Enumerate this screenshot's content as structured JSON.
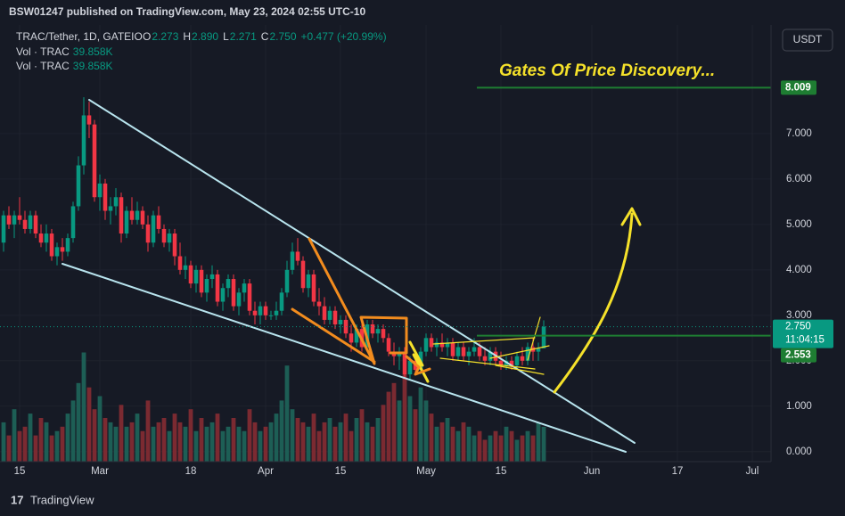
{
  "chart_data": {
    "type": "candlestick",
    "publisher": "BSW01247 published on TradingView.com, May 23, 2024 02:55 UTC-10",
    "symbol": "TRAC/Tether, 1D, GATEIO",
    "legend": [
      {
        "label": "O",
        "value": "2.273"
      },
      {
        "label": "H",
        "value": "2.890"
      },
      {
        "label": "L",
        "value": "2.271"
      },
      {
        "label": "C",
        "value": "2.750"
      }
    ],
    "change": "+0.477 (+20.99%)",
    "volume_legends": [
      {
        "label": "Vol · TRAC",
        "value": "39.858K"
      },
      {
        "label": "Vol · TRAC",
        "value": "39.858K"
      }
    ],
    "currency": "USDT",
    "annotation": "Gates Of Price Discovery...",
    "countdown": "11:04:15",
    "brand": "TradingView",
    "up_color": "#089981",
    "down_color": "#f23645",
    "volume_up_color": "#1d5e55",
    "volume_down_color": "#7b2a31",
    "xlim": [
      -3.667,
      140.5
    ],
    "ylim": [
      -0.22,
      9.39
    ],
    "vlim": [
      0,
      500
    ],
    "xticks": [
      {
        "value": 0,
        "label": "15"
      },
      {
        "value": 15,
        "label": "Mar"
      },
      {
        "value": 32,
        "label": "18"
      },
      {
        "value": 46,
        "label": "Apr"
      },
      {
        "value": 60,
        "label": "15"
      },
      {
        "value": 76,
        "label": "May"
      },
      {
        "value": 90,
        "label": "15"
      },
      {
        "value": 107,
        "label": "Jun"
      },
      {
        "value": 123,
        "label": "17"
      },
      {
        "value": 137,
        "label": "Jul"
      }
    ],
    "yticks": [
      {
        "value": 0,
        "label": "0.000"
      },
      {
        "value": 1,
        "label": "1.000"
      },
      {
        "value": 2,
        "label": "2.000"
      },
      {
        "value": 3,
        "label": "3.000"
      },
      {
        "value": 4,
        "label": "4.000"
      },
      {
        "value": 5,
        "label": "5.000"
      },
      {
        "value": 6,
        "label": "6.000"
      },
      {
        "value": 7,
        "label": "7.000"
      }
    ],
    "last_price": {
      "value": 2.75,
      "label": "2.750"
    },
    "hlines": [
      {
        "value": 8.009,
        "label": "8.009"
      },
      {
        "value": 2.553,
        "label": "2.553"
      }
    ],
    "hline_color": "#1e7d32",
    "x": [
      -3,
      -2,
      -1,
      0,
      1,
      2,
      3,
      4,
      5,
      6,
      7,
      8,
      9,
      10,
      11,
      12,
      13,
      14,
      15,
      16,
      17,
      18,
      19,
      20,
      21,
      22,
      23,
      24,
      25,
      26,
      27,
      28,
      29,
      30,
      31,
      32,
      33,
      34,
      35,
      36,
      37,
      38,
      39,
      40,
      41,
      42,
      43,
      44,
      45,
      46,
      47,
      48,
      49,
      50,
      51,
      52,
      53,
      54,
      55,
      56,
      57,
      58,
      59,
      60,
      61,
      62,
      63,
      64,
      65,
      66,
      67,
      68,
      69,
      70,
      71,
      72,
      73,
      74,
      75,
      76,
      77,
      78,
      79,
      80,
      81,
      82,
      83,
      84,
      85,
      86,
      87,
      88,
      89,
      90,
      91,
      92,
      93,
      94,
      95,
      96,
      97,
      98
    ],
    "ohlc": [
      [
        4.6,
        5.3,
        4.4,
        5.2
      ],
      [
        5.2,
        5.4,
        4.9,
        5.0
      ],
      [
        5.0,
        5.3,
        4.7,
        5.2
      ],
      [
        5.2,
        5.6,
        5.0,
        5.1
      ],
      [
        5.1,
        5.3,
        4.8,
        4.9
      ],
      [
        4.9,
        5.3,
        4.8,
        5.2
      ],
      [
        5.2,
        5.3,
        4.7,
        4.8
      ],
      [
        4.8,
        5.0,
        4.5,
        4.6
      ],
      [
        4.6,
        5.0,
        4.4,
        4.8
      ],
      [
        4.8,
        4.9,
        4.2,
        4.3
      ],
      [
        4.3,
        4.6,
        4.1,
        4.5
      ],
      [
        4.5,
        4.7,
        4.2,
        4.4
      ],
      [
        4.4,
        4.8,
        4.3,
        4.7
      ],
      [
        4.7,
        5.5,
        4.6,
        5.4
      ],
      [
        5.4,
        6.5,
        5.3,
        6.3
      ],
      [
        6.3,
        7.8,
        6.1,
        7.4
      ],
      [
        7.4,
        7.7,
        6.9,
        7.2
      ],
      [
        7.2,
        7.3,
        5.5,
        5.6
      ],
      [
        5.6,
        6.1,
        5.3,
        5.9
      ],
      [
        5.9,
        6.0,
        5.1,
        5.3
      ],
      [
        5.3,
        5.6,
        5.0,
        5.4
      ],
      [
        5.4,
        5.8,
        5.2,
        5.6
      ],
      [
        5.6,
        5.7,
        4.6,
        4.8
      ],
      [
        4.8,
        5.4,
        4.7,
        5.3
      ],
      [
        5.3,
        5.6,
        5.0,
        5.1
      ],
      [
        5.1,
        5.5,
        5.0,
        5.3
      ],
      [
        5.3,
        5.4,
        4.9,
        5.0
      ],
      [
        5.0,
        5.2,
        4.4,
        4.6
      ],
      [
        4.6,
        5.3,
        4.5,
        5.2
      ],
      [
        5.2,
        5.4,
        4.8,
        4.9
      ],
      [
        4.9,
        5.0,
        4.5,
        4.6
      ],
      [
        4.6,
        4.9,
        4.4,
        4.8
      ],
      [
        4.8,
        4.9,
        4.1,
        4.3
      ],
      [
        4.3,
        4.6,
        3.9,
        4.0
      ],
      [
        4.0,
        4.3,
        3.8,
        4.1
      ],
      [
        4.1,
        4.2,
        3.6,
        3.7
      ],
      [
        3.7,
        4.1,
        3.5,
        4.0
      ],
      [
        4.0,
        4.1,
        3.4,
        3.5
      ],
      [
        3.5,
        3.9,
        3.3,
        3.8
      ],
      [
        3.8,
        4.1,
        3.6,
        3.9
      ],
      [
        3.9,
        4.0,
        3.2,
        3.3
      ],
      [
        3.3,
        3.7,
        3.1,
        3.6
      ],
      [
        3.6,
        3.9,
        3.4,
        3.8
      ],
      [
        3.8,
        3.9,
        3.1,
        3.2
      ],
      [
        3.2,
        3.6,
        3.0,
        3.5
      ],
      [
        3.5,
        3.8,
        3.3,
        3.7
      ],
      [
        3.7,
        3.8,
        3.0,
        3.1
      ],
      [
        3.1,
        3.3,
        2.8,
        3.0
      ],
      [
        3.0,
        3.3,
        2.8,
        3.2
      ],
      [
        3.2,
        3.3,
        2.9,
        3.0
      ],
      [
        3.0,
        3.1,
        2.9,
        3.0
      ],
      [
        3.0,
        3.3,
        2.9,
        3.1
      ],
      [
        3.1,
        3.6,
        3.0,
        3.5
      ],
      [
        3.5,
        4.2,
        3.4,
        4.0
      ],
      [
        4.0,
        4.6,
        3.9,
        4.4
      ],
      [
        4.4,
        4.7,
        4.1,
        4.2
      ],
      [
        4.2,
        4.3,
        3.5,
        3.6
      ],
      [
        3.6,
        4.0,
        3.4,
        3.9
      ],
      [
        3.9,
        4.0,
        3.2,
        3.3
      ],
      [
        3.3,
        3.6,
        3.0,
        3.2
      ],
      [
        3.2,
        3.4,
        2.8,
        2.9
      ],
      [
        2.9,
        3.2,
        2.8,
        3.1
      ],
      [
        3.1,
        3.2,
        2.7,
        2.8
      ],
      [
        2.8,
        3.0,
        2.6,
        2.9
      ],
      [
        2.9,
        3.0,
        2.5,
        2.6
      ],
      [
        2.6,
        2.8,
        2.2,
        2.4
      ],
      [
        2.4,
        2.8,
        2.3,
        2.7
      ],
      [
        2.7,
        2.9,
        2.2,
        2.3
      ],
      [
        2.3,
        2.9,
        2.2,
        2.8
      ],
      [
        2.8,
        2.9,
        2.5,
        2.6
      ],
      [
        2.6,
        2.8,
        2.4,
        2.7
      ],
      [
        2.7,
        2.8,
        2.4,
        2.5
      ],
      [
        2.5,
        2.6,
        2.1,
        2.2
      ],
      [
        2.2,
        2.4,
        1.9,
        2.1
      ],
      [
        2.1,
        2.3,
        1.8,
        2.2
      ],
      [
        2.2,
        2.3,
        1.6,
        1.7
      ],
      [
        1.7,
        2.1,
        1.6,
        2.0
      ],
      [
        2.0,
        2.1,
        1.7,
        1.8
      ],
      [
        1.8,
        2.3,
        1.7,
        2.2
      ],
      [
        2.2,
        2.6,
        2.1,
        2.5
      ],
      [
        2.5,
        2.6,
        2.2,
        2.3
      ],
      [
        2.3,
        2.5,
        2.1,
        2.4
      ],
      [
        2.4,
        2.6,
        2.2,
        2.3
      ],
      [
        2.3,
        2.5,
        2.1,
        2.4
      ],
      [
        2.4,
        2.5,
        2.0,
        2.1
      ],
      [
        2.1,
        2.4,
        2.0,
        2.3
      ],
      [
        2.3,
        2.4,
        2.0,
        2.1
      ],
      [
        2.1,
        2.3,
        1.9,
        2.2
      ],
      [
        2.2,
        2.5,
        2.1,
        2.3
      ],
      [
        2.3,
        2.4,
        2.0,
        2.1
      ],
      [
        2.1,
        2.3,
        1.9,
        2.0
      ],
      [
        2.0,
        2.3,
        1.9,
        2.2
      ],
      [
        2.2,
        2.3,
        1.9,
        2.0
      ],
      [
        2.0,
        2.2,
        1.8,
        1.9
      ],
      [
        1.9,
        2.1,
        1.8,
        2.0
      ],
      [
        2.0,
        2.1,
        1.8,
        1.9
      ],
      [
        1.9,
        2.2,
        1.8,
        2.1
      ],
      [
        2.1,
        2.3,
        1.9,
        2.0
      ],
      [
        2.0,
        2.4,
        1.9,
        2.3
      ],
      [
        2.3,
        2.5,
        2.0,
        2.2
      ],
      [
        2.2,
        2.4,
        2.0,
        2.27
      ],
      [
        2.273,
        2.89,
        2.271,
        2.75
      ]
    ],
    "volume": [
      45,
      30,
      60,
      35,
      40,
      55,
      30,
      50,
      45,
      30,
      35,
      40,
      55,
      70,
      90,
      125,
      85,
      60,
      75,
      50,
      45,
      40,
      65,
      40,
      45,
      55,
      35,
      70,
      40,
      45,
      50,
      35,
      55,
      45,
      40,
      60,
      35,
      50,
      40,
      45,
      55,
      35,
      40,
      50,
      40,
      35,
      60,
      45,
      35,
      40,
      45,
      55,
      70,
      110,
      60,
      50,
      45,
      40,
      55,
      35,
      45,
      50,
      40,
      45,
      55,
      35,
      50,
      60,
      45,
      40,
      50,
      65,
      80,
      90,
      70,
      100,
      75,
      60,
      85,
      70,
      55,
      40,
      45,
      50,
      40,
      35,
      45,
      40,
      30,
      35,
      25,
      30,
      35,
      30,
      40,
      35,
      25,
      30,
      35,
      30,
      45,
      39.858
    ]
  }
}
